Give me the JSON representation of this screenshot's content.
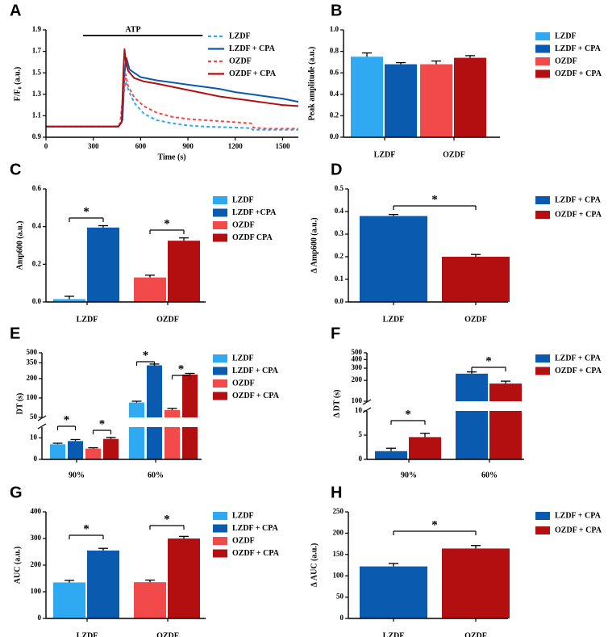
{
  "colors": {
    "lzdf": "#2ea9f2",
    "lzdf_cpa": "#0a5bb0",
    "ozdf": "#f24a4a",
    "ozdf_cpa": "#b40f10",
    "axis": "#000000"
  },
  "chart_data": [
    {
      "panel": "A",
      "type": "line",
      "ylabel": "F/F₀ (a.u.)",
      "xlabel": "Time (s)",
      "annotation": "ATP",
      "annotation_span": [
        480,
        1300
      ],
      "xlim": [
        0,
        1600
      ],
      "ylim": [
        0.9,
        1.9
      ],
      "xticks": [
        "0",
        "300",
        "600",
        "900",
        "1200",
        "1500"
      ],
      "yticks": [
        "0.9",
        "1.1",
        "1.3",
        "1.5",
        "1.7",
        "1.9"
      ],
      "legend": [
        "LZDF",
        "LZDF + CPA",
        "OZDF",
        "OZDF + CPA"
      ],
      "series": [
        {
          "name": "LZDF",
          "style": "dashed",
          "x": [
            0,
            440,
            470,
            490,
            505,
            520,
            560,
            620,
            700,
            800,
            900,
            1000,
            1100,
            1200,
            1300,
            1310,
            1400,
            1500,
            1600
          ],
          "y": [
            1.0,
            1.0,
            1.02,
            1.26,
            1.42,
            1.35,
            1.22,
            1.12,
            1.06,
            1.03,
            1.01,
            1.0,
            0.995,
            0.99,
            0.985,
            0.97,
            0.97,
            0.97,
            0.97
          ]
        },
        {
          "name": "LZDF + CPA",
          "style": "solid",
          "x": [
            0,
            460,
            485,
            498,
            510,
            530,
            600,
            700,
            800,
            900,
            1000,
            1100,
            1200,
            1300,
            1400,
            1500,
            1600
          ],
          "y": [
            1.0,
            1.0,
            1.06,
            1.5,
            1.64,
            1.53,
            1.46,
            1.43,
            1.41,
            1.39,
            1.37,
            1.35,
            1.32,
            1.3,
            1.28,
            1.26,
            1.23
          ]
        },
        {
          "name": "OZDF",
          "style": "dashed",
          "x": [
            0,
            450,
            470,
            490,
            505,
            520,
            560,
            620,
            700,
            800,
            900,
            1000,
            1100,
            1200,
            1300,
            1315,
            1400,
            1500,
            1600
          ],
          "y": [
            1.0,
            1.0,
            1.03,
            1.3,
            1.49,
            1.38,
            1.27,
            1.19,
            1.13,
            1.09,
            1.07,
            1.06,
            1.05,
            1.04,
            1.03,
            0.99,
            0.98,
            0.98,
            0.98
          ]
        },
        {
          "name": "OZDF + CPA",
          "style": "solid",
          "x": [
            0,
            460,
            480,
            492,
            498,
            505,
            520,
            560,
            620,
            700,
            800,
            900,
            1000,
            1100,
            1200,
            1300,
            1400,
            1500,
            1600
          ],
          "y": [
            1.0,
            1.0,
            1.04,
            1.55,
            1.72,
            1.62,
            1.52,
            1.45,
            1.42,
            1.4,
            1.37,
            1.34,
            1.31,
            1.28,
            1.26,
            1.24,
            1.22,
            1.2,
            1.19
          ]
        }
      ]
    },
    {
      "panel": "B",
      "type": "bar",
      "ylabel": "Peak amplitude (a.u.)",
      "ylim": [
        0,
        1.0
      ],
      "yticks": [
        "0.0",
        "0.2",
        "0.4",
        "0.6",
        "0.8",
        "1.0"
      ],
      "groups": [
        "LZDF",
        "OZDF"
      ],
      "legend": [
        "LZDF",
        "LZDF + CPA",
        "OZDF",
        "OZDF + CPA"
      ],
      "bars": [
        {
          "name": "LZDF",
          "group": 0,
          "value": 0.75,
          "error": 0.035
        },
        {
          "name": "LZDF + CPA",
          "group": 0,
          "value": 0.68,
          "error": 0.015
        },
        {
          "name": "OZDF",
          "group": 1,
          "value": 0.68,
          "error": 0.03
        },
        {
          "name": "OZDF + CPA",
          "group": 1,
          "value": 0.74,
          "error": 0.02
        }
      ]
    },
    {
      "panel": "C",
      "type": "bar",
      "ylabel": "Amp600 (a.u.)",
      "ylim": [
        0,
        0.6
      ],
      "yticks": [
        "0.0",
        "0.2",
        "0.4",
        "0.6"
      ],
      "groups": [
        "LZDF",
        "OZDF"
      ],
      "legend": [
        "LZDF",
        "LZDF +CPA",
        "OZDF",
        "OZDF CPA"
      ],
      "bars": [
        {
          "name": "LZDF",
          "group": 0,
          "value": 0.015,
          "error": 0.015
        },
        {
          "name": "LZDF + CPA",
          "group": 0,
          "value": 0.395,
          "error": 0.01
        },
        {
          "name": "OZDF",
          "group": 1,
          "value": 0.13,
          "error": 0.012
        },
        {
          "name": "OZDF + CPA",
          "group": 1,
          "value": 0.325,
          "error": 0.015
        }
      ],
      "significance": [
        "*",
        "*"
      ]
    },
    {
      "panel": "D",
      "type": "bar",
      "ylabel": "Δ Amp600 (a.u.)",
      "ylim": [
        0,
        0.5
      ],
      "yticks": [
        "0.0",
        "0.1",
        "0.2",
        "0.3",
        "0.4",
        "0.5"
      ],
      "categories": [
        "LZDF",
        "OZDF"
      ],
      "legend": [
        "LZDF + CPA",
        "OZDF + CPA"
      ],
      "values": [
        0.38,
        0.2
      ],
      "errors": [
        0.007,
        0.01
      ],
      "significance": [
        "*"
      ]
    },
    {
      "panel": "E",
      "type": "bar",
      "ylabel": "DT (s)",
      "broken_axis": {
        "lower": [
          0,
          15
        ],
        "upper": [
          50,
          500
        ]
      },
      "yticks_lower": [
        "0",
        "10"
      ],
      "yticks_upper": [
        "50",
        "100",
        "200",
        "350",
        "500"
      ],
      "groups": [
        "90%",
        "60%"
      ],
      "legend": [
        "LZDF",
        "LZDF + CPA",
        "OZDF",
        "OZDF + CPA"
      ],
      "bars": [
        {
          "name": "LZDF",
          "group": 0,
          "value": 7.0,
          "error": 0.5
        },
        {
          "name": "LZDF + CPA",
          "group": 0,
          "value": 8.5,
          "error": 0.7
        },
        {
          "name": "OZDF",
          "group": 0,
          "value": 5.0,
          "error": 0.4
        },
        {
          "name": "OZDF + CPA",
          "group": 0,
          "value": 9.5,
          "error": 0.7
        },
        {
          "name": "LZDF",
          "group": 1,
          "value": 85,
          "error": 4
        },
        {
          "name": "LZDF + CPA",
          "group": 1,
          "value": 320,
          "error": 15
        },
        {
          "name": "OZDF",
          "group": 1,
          "value": 65,
          "error": 4
        },
        {
          "name": "OZDF + CPA",
          "group": 1,
          "value": 230,
          "error": 10
        }
      ],
      "significance": [
        "*",
        "*",
        "*",
        "*"
      ]
    },
    {
      "panel": "F",
      "type": "bar",
      "ylabel": "Δ DT (s)",
      "broken_axis": {
        "lower": [
          0,
          10
        ],
        "upper": [
          100,
          500
        ]
      },
      "yticks_lower": [
        "0",
        "5",
        "10"
      ],
      "yticks_upper": [
        "100",
        "200",
        "300",
        "400",
        "500"
      ],
      "groups": [
        "90%",
        "60%"
      ],
      "legend": [
        "LZDF + CPA",
        "OZDF + CPA"
      ],
      "bars": [
        {
          "name": "LZDF + CPA",
          "group": 0,
          "value": 1.7,
          "error": 0.6
        },
        {
          "name": "OZDF + CPA",
          "group": 0,
          "value": 4.6,
          "error": 0.8
        },
        {
          "name": "LZDF + CPA",
          "group": 1,
          "value": 250,
          "error": 15
        },
        {
          "name": "OZDF + CPA",
          "group": 1,
          "value": 180,
          "error": 15
        }
      ],
      "significance": [
        "*",
        "*"
      ]
    },
    {
      "panel": "G",
      "type": "bar",
      "ylabel": "AUC (a.u.)",
      "ylim": [
        0,
        400
      ],
      "yticks": [
        "0",
        "100",
        "200",
        "300",
        "400"
      ],
      "groups": [
        "LZDF",
        "OZDF"
      ],
      "legend": [
        "LZDF",
        "LZDF + CPA",
        "OZDF",
        "OZDF + CPA"
      ],
      "bars": [
        {
          "name": "LZDF",
          "group": 0,
          "value": 135,
          "error": 8
        },
        {
          "name": "LZDF + CPA",
          "group": 0,
          "value": 255,
          "error": 8
        },
        {
          "name": "OZDF",
          "group": 1,
          "value": 136,
          "error": 8
        },
        {
          "name": "OZDF + CPA",
          "group": 1,
          "value": 300,
          "error": 8
        }
      ],
      "significance": [
        "*",
        "*"
      ]
    },
    {
      "panel": "H",
      "type": "bar",
      "ylabel": "Δ AUC (a.u.)",
      "ylim": [
        0,
        250
      ],
      "yticks": [
        "0",
        "50",
        "100",
        "150",
        "200",
        "250"
      ],
      "categories": [
        "LZDF",
        "OZDF"
      ],
      "legend": [
        "LZDF + CPA",
        "OZDF + CPA"
      ],
      "values": [
        122,
        164
      ],
      "errors": [
        7,
        7
      ],
      "significance": [
        "*"
      ]
    }
  ]
}
